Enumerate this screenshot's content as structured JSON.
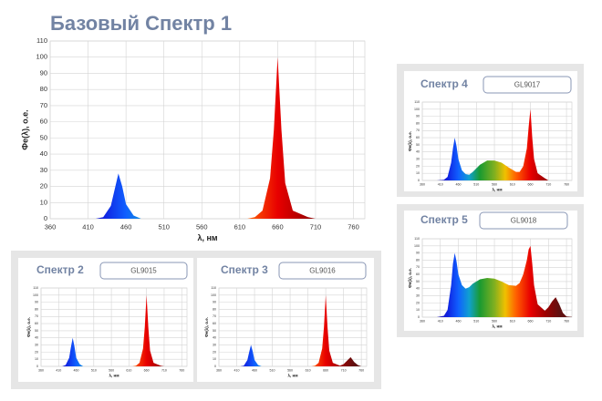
{
  "chart_data": [
    {
      "type": "area",
      "title": "Базовый Спектр 1",
      "x_label": "λ, нм",
      "y_label": "Фе(λ), о.е.",
      "x": [
        360,
        400,
        420,
        430,
        440,
        445,
        450,
        455,
        460,
        470,
        480,
        490,
        500,
        520,
        540,
        560,
        580,
        600,
        620,
        630,
        640,
        650,
        655,
        660,
        665,
        670,
        680,
        700,
        710,
        720,
        730,
        740,
        750,
        760,
        780
      ],
      "values": [
        0,
        0,
        0,
        1,
        8,
        18,
        28,
        20,
        9,
        2,
        0,
        0,
        0,
        0,
        0,
        0,
        0,
        0,
        0,
        1,
        5,
        25,
        55,
        100,
        55,
        22,
        5,
        1,
        0,
        0,
        0,
        0,
        0,
        0,
        0
      ],
      "xlim": [
        360,
        775
      ],
      "xticks": [
        360,
        410,
        460,
        510,
        560,
        610,
        660,
        710,
        760
      ],
      "ylim": [
        0,
        110
      ],
      "yticks": [
        0,
        10,
        20,
        30,
        40,
        50,
        60,
        70,
        80,
        90,
        100,
        110
      ],
      "grid": true
    },
    {
      "type": "area",
      "title": "Спектр 2",
      "subtitle": "GL9015",
      "x_label": "λ, нм",
      "y_label": "Фе(λ), о.е.",
      "x": [
        360,
        400,
        420,
        430,
        440,
        445,
        450,
        455,
        460,
        470,
        480,
        490,
        500,
        520,
        540,
        560,
        580,
        600,
        620,
        630,
        640,
        650,
        655,
        660,
        665,
        670,
        680,
        700,
        710,
        720,
        730,
        740,
        750,
        760,
        780
      ],
      "values": [
        0,
        0,
        0,
        2,
        12,
        27,
        40,
        28,
        12,
        3,
        0,
        0,
        0,
        0,
        0,
        0,
        0,
        0,
        0,
        1,
        5,
        25,
        55,
        100,
        55,
        22,
        5,
        1,
        0,
        0,
        0,
        0,
        0,
        0,
        0
      ],
      "xlim": [
        360,
        775
      ],
      "xticks": [
        360,
        410,
        460,
        510,
        560,
        610,
        660,
        710,
        760
      ],
      "ylim": [
        0,
        110
      ],
      "yticks": [
        0,
        10,
        20,
        30,
        40,
        50,
        60,
        70,
        80,
        90,
        100,
        110
      ],
      "grid": true
    },
    {
      "type": "area",
      "title": "Спектр 3",
      "subtitle": "GL9016",
      "x_label": "λ, нм",
      "y_label": "Фе(λ), о.е.",
      "x": [
        360,
        400,
        420,
        430,
        440,
        445,
        450,
        455,
        460,
        470,
        480,
        490,
        500,
        520,
        540,
        560,
        580,
        600,
        620,
        630,
        640,
        650,
        655,
        660,
        665,
        670,
        680,
        700,
        710,
        720,
        730,
        740,
        750,
        760,
        780
      ],
      "values": [
        0,
        0,
        0,
        1,
        9,
        20,
        30,
        21,
        9,
        2,
        0,
        0,
        0,
        0,
        0,
        0,
        0,
        0,
        0,
        1,
        5,
        25,
        55,
        100,
        55,
        22,
        5,
        1,
        3,
        8,
        13,
        6,
        2,
        0,
        0
      ],
      "xlim": [
        360,
        775
      ],
      "xticks": [
        360,
        410,
        460,
        510,
        560,
        610,
        660,
        710,
        760
      ],
      "ylim": [
        0,
        110
      ],
      "yticks": [
        0,
        10,
        20,
        30,
        40,
        50,
        60,
        70,
        80,
        90,
        100,
        110
      ],
      "grid": true
    },
    {
      "type": "area",
      "title": "Спектр 4",
      "subtitle": "GL9017",
      "x_label": "λ, нм",
      "y_label": "Фе(λ), о.е.",
      "x": [
        360,
        400,
        420,
        430,
        440,
        445,
        450,
        455,
        460,
        470,
        480,
        490,
        500,
        520,
        540,
        560,
        580,
        600,
        620,
        630,
        640,
        650,
        655,
        660,
        665,
        670,
        680,
        700,
        710,
        720,
        730,
        740,
        750,
        760,
        780
      ],
      "values": [
        0,
        0,
        1,
        5,
        25,
        45,
        60,
        48,
        30,
        14,
        9,
        8,
        12,
        22,
        28,
        28,
        25,
        18,
        12,
        12,
        20,
        45,
        75,
        100,
        60,
        30,
        10,
        3,
        0,
        0,
        0,
        0,
        0,
        0,
        0
      ],
      "xlim": [
        360,
        775
      ],
      "xticks": [
        360,
        410,
        460,
        510,
        560,
        610,
        660,
        710,
        760
      ],
      "ylim": [
        0,
        110
      ],
      "yticks": [
        0,
        10,
        20,
        30,
        40,
        50,
        60,
        70,
        80,
        90,
        100,
        110
      ],
      "grid": true
    },
    {
      "type": "area",
      "title": "Спектр 5",
      "subtitle": "GL9018",
      "x_label": "λ, нм",
      "y_label": "Фе(λ), о.е.",
      "x": [
        360,
        400,
        420,
        430,
        440,
        445,
        450,
        455,
        460,
        470,
        480,
        490,
        500,
        520,
        540,
        560,
        580,
        600,
        620,
        630,
        640,
        650,
        655,
        660,
        665,
        670,
        680,
        700,
        710,
        720,
        730,
        740,
        750,
        760,
        780
      ],
      "values": [
        0,
        0,
        2,
        10,
        45,
        75,
        90,
        78,
        60,
        45,
        40,
        42,
        47,
        53,
        55,
        54,
        50,
        45,
        44,
        48,
        60,
        80,
        95,
        100,
        75,
        45,
        18,
        9,
        14,
        22,
        28,
        18,
        6,
        1,
        0
      ],
      "xlim": [
        360,
        775
      ],
      "xticks": [
        360,
        410,
        460,
        510,
        560,
        610,
        660,
        710,
        760
      ],
      "ylim": [
        0,
        110
      ],
      "yticks": [
        0,
        10,
        20,
        30,
        40,
        50,
        60,
        70,
        80,
        90,
        100,
        110
      ],
      "grid": true
    }
  ]
}
